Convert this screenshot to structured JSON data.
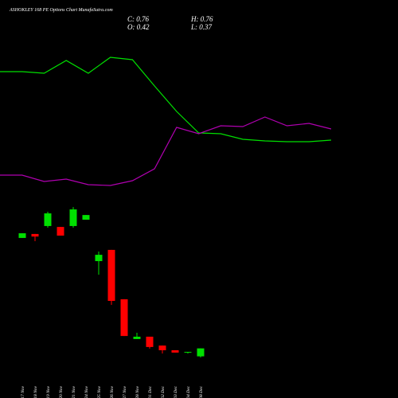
{
  "chart_data": [
    {
      "type": "candlestick",
      "title": "ASHOKLEY 168 PE Options Chart MunafaSutra.com",
      "annotations": [
        "C: 0.76",
        "H: 0.76",
        "O: 0.42",
        "L: 0.37"
      ],
      "categories": [
        "17 Nov",
        "18 Nov",
        "19 Nov",
        "20 Nov",
        "21 Nov",
        "24 Nov",
        "25 Nov",
        "26 Nov",
        "27 Nov",
        "28 Nov",
        "01 Dec",
        "02 Dec",
        "03 Dec",
        "04 Dec",
        "08 Dec"
      ],
      "open": [
        5.48,
        5.65,
        5.99,
        5.95,
        5.99,
        6.26,
        4.49,
        4.97,
        2.86,
        1.16,
        1.26,
        0.88,
        0.68,
        0.58,
        0.42
      ],
      "high": [
        5.68,
        5.65,
        6.6,
        5.95,
        6.8,
        6.46,
        4.9,
        4.97,
        2.86,
        1.43,
        1.26,
        0.88,
        0.68,
        0.61,
        0.76
      ],
      "low": [
        5.48,
        5.34,
        5.92,
        5.58,
        5.92,
        6.26,
        3.91,
        2.62,
        1.29,
        1.16,
        0.75,
        0.54,
        0.58,
        0.54,
        0.37
      ],
      "close": [
        5.68,
        5.54,
        6.53,
        5.58,
        6.7,
        6.46,
        4.76,
        2.79,
        1.29,
        1.26,
        0.82,
        0.68,
        0.58,
        0.61,
        0.76
      ],
      "up_color": "#00e000",
      "down_color": "#ff0000",
      "ylim": [
        0,
        15.65
      ]
    },
    {
      "type": "line",
      "categories": [
        null,
        null,
        null,
        null,
        null,
        null,
        null,
        null,
        null,
        null,
        null,
        null,
        null,
        null,
        null,
        null
      ],
      "series": [
        {
          "color": "#00e000",
          "values": [
            410,
            410,
            408,
            424,
            408,
            428,
            425,
            392,
            360,
            333,
            332,
            325,
            323,
            322,
            322,
            324
          ]
        },
        {
          "color": "#b000b0",
          "values": [
            280,
            280,
            272,
            275,
            268,
            267,
            273,
            288,
            340,
            332,
            342,
            341,
            353,
            342,
            345,
            338
          ]
        }
      ],
      "ylim": [
        0,
        500
      ]
    }
  ]
}
